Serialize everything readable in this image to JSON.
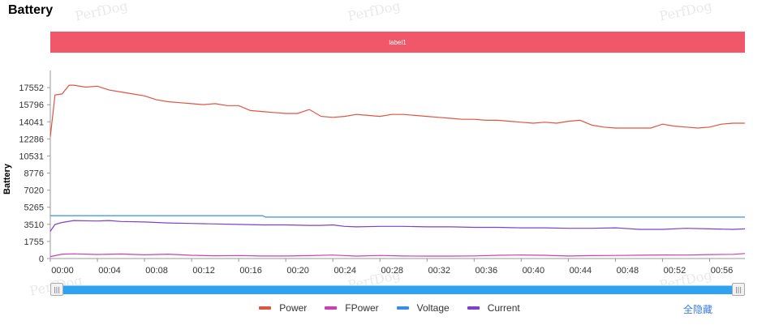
{
  "page": {
    "title": "Battery",
    "watermark": "PerfDog"
  },
  "controls": {
    "hide_all_label": "全隐藏"
  },
  "chart_data": {
    "type": "line",
    "band_label": "label1",
    "ylabel": "Battery",
    "ylim": [
      0,
      19307
    ],
    "y_ticks": [
      "0",
      "1755",
      "3510",
      "5265",
      "7020",
      "8776",
      "10531",
      "12286",
      "14041",
      "15796",
      "17552"
    ],
    "xlim": [
      0,
      59
    ],
    "x_ticks": [
      "00:00",
      "00:04",
      "00:08",
      "00:12",
      "00:16",
      "00:20",
      "00:24",
      "00:28",
      "00:32",
      "00:36",
      "00:40",
      "00:44",
      "00:48",
      "00:52",
      "00:56"
    ],
    "legend_position": "bottom",
    "series": [
      {
        "name": "Power",
        "color": "#e0543f",
        "x": [
          0,
          0.4,
          1,
          1.6,
          2,
          3,
          4,
          5,
          6,
          7,
          8,
          9,
          10,
          11,
          12,
          13,
          14,
          15,
          16,
          17,
          18,
          19,
          20,
          21,
          22,
          23,
          24,
          25,
          26,
          27,
          28,
          29,
          30,
          31,
          32,
          33,
          34,
          35,
          36,
          37,
          38,
          39,
          40,
          41,
          42,
          43,
          44,
          45,
          46,
          47,
          48,
          49,
          50,
          51,
          52,
          53,
          54,
          55,
          56,
          57,
          58,
          59
        ],
        "y": [
          12500,
          16800,
          16900,
          17800,
          17800,
          17600,
          17700,
          17300,
          17100,
          16900,
          16700,
          16300,
          16100,
          16000,
          15900,
          15800,
          15900,
          15700,
          15700,
          15200,
          15100,
          15000,
          14900,
          14900,
          15300,
          14600,
          14500,
          14600,
          14800,
          14700,
          14600,
          14800,
          14800,
          14700,
          14600,
          14500,
          14400,
          14300,
          14300,
          14200,
          14200,
          14100,
          14000,
          13900,
          14000,
          13900,
          14100,
          14200,
          13700,
          13500,
          13400,
          13400,
          13400,
          13400,
          13800,
          13600,
          13500,
          13400,
          13500,
          13800,
          13900,
          13900
        ]
      },
      {
        "name": "FPower",
        "color": "#cc3fb3",
        "x": [
          0,
          1,
          2,
          4,
          6,
          8,
          10,
          12,
          14,
          16,
          18,
          20,
          22,
          24,
          26,
          28,
          30,
          32,
          34,
          36,
          38,
          40,
          42,
          44,
          46,
          48,
          50,
          52,
          54,
          56,
          58,
          59
        ],
        "y": [
          200,
          450,
          480,
          420,
          470,
          380,
          450,
          330,
          280,
          310,
          260,
          260,
          300,
          360,
          250,
          320,
          260,
          250,
          250,
          270,
          330,
          370,
          330,
          260,
          300,
          320,
          340,
          370,
          360,
          410,
          430,
          520
        ]
      },
      {
        "name": "Voltage",
        "color": "#3a8de6",
        "x": [
          0,
          18,
          18.3,
          59
        ],
        "y": [
          4400,
          4400,
          4250,
          4250
        ]
      },
      {
        "name": "Current",
        "color": "#7e3fd6",
        "x": [
          0,
          0.4,
          1,
          2,
          4,
          5,
          6,
          8,
          10,
          12,
          14,
          16,
          18,
          20,
          22,
          23,
          24,
          25,
          26,
          28,
          30,
          32,
          34,
          36,
          38,
          40,
          42,
          44,
          46,
          48,
          50,
          52,
          54,
          56,
          58,
          59
        ],
        "y": [
          2800,
          3500,
          3700,
          3900,
          3850,
          3900,
          3800,
          3750,
          3650,
          3600,
          3550,
          3500,
          3450,
          3450,
          3400,
          3400,
          3450,
          3300,
          3250,
          3300,
          3300,
          3250,
          3250,
          3200,
          3200,
          3150,
          3150,
          3100,
          3100,
          3150,
          3000,
          3000,
          3100,
          3050,
          3000,
          3050
        ]
      }
    ]
  }
}
